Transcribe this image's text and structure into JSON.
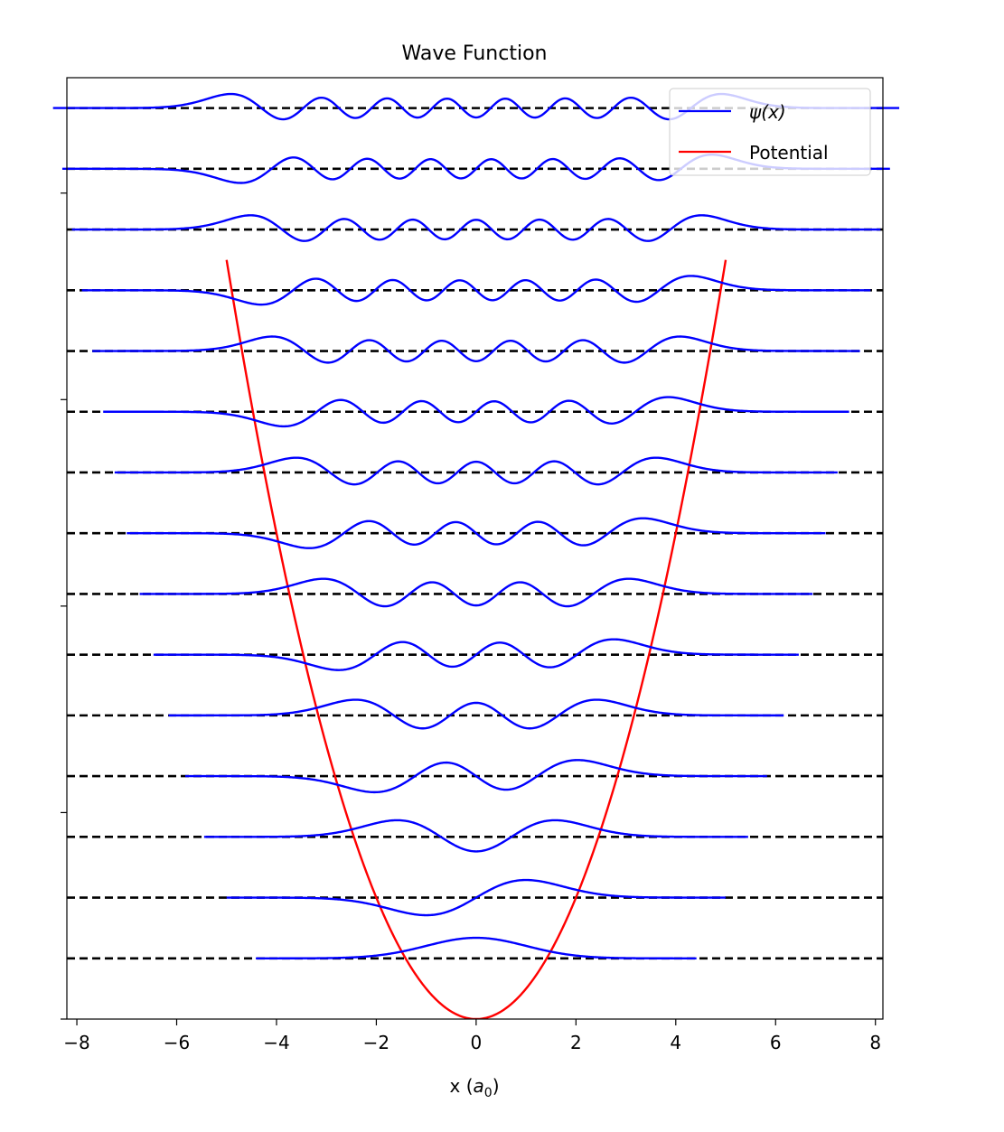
{
  "chart_data": {
    "type": "line",
    "title": "Wave Function",
    "xlabel_main": "x (",
    "xlabel_sym": "a",
    "xlabel_sub": "0",
    "xlabel_close": ")",
    "ylabel": "",
    "xlim": [
      -8.2,
      8.15
    ],
    "ylim": [
      0,
      15.5
    ],
    "x_ticks": [
      {
        "value": -8,
        "label": "−8"
      },
      {
        "value": -6,
        "label": "−6"
      },
      {
        "value": -4,
        "label": "−4"
      },
      {
        "value": -2,
        "label": "−2"
      },
      {
        "value": 0,
        "label": "0"
      },
      {
        "value": 2,
        "label": "2"
      },
      {
        "value": 4,
        "label": "4"
      },
      {
        "value": 6,
        "label": "6"
      },
      {
        "value": 8,
        "label": "8"
      }
    ],
    "y_ticks": [
      0,
      3.4,
      6.8,
      10.2,
      13.6
    ],
    "energy_levels": [
      1,
      2,
      3,
      4,
      5,
      6,
      7,
      8,
      9,
      10,
      11,
      12,
      13,
      14,
      15
    ],
    "wavefunction_amplitude": 0.45,
    "potential": {
      "form": "0.5*x^2",
      "x_range": [
        -5.0,
        5.0
      ]
    },
    "series": [
      {
        "name": "ψ(x)",
        "color": "#0000ff"
      },
      {
        "name": "Potential",
        "color": "#ff0000"
      }
    ],
    "legend": {
      "placement": "top-right",
      "items": [
        {
          "label": "ψ(x)",
          "color": "#0000ff"
        },
        {
          "label": "Potential",
          "color": "#ff0000"
        }
      ]
    },
    "colors": {
      "wavefunction": "#0000ff",
      "potential": "#ff0000",
      "levels": "#000000"
    }
  }
}
